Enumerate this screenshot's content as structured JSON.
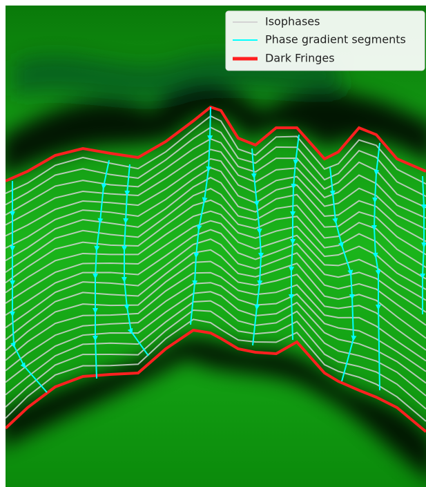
{
  "legend": {
    "items": [
      {
        "label": "Isophases",
        "color": "#d3d3d3"
      },
      {
        "label": "Phase gradient segments",
        "color": "#00ffff"
      },
      {
        "label": "Dark Fringes",
        "color": "#ff2020"
      }
    ]
  }
}
